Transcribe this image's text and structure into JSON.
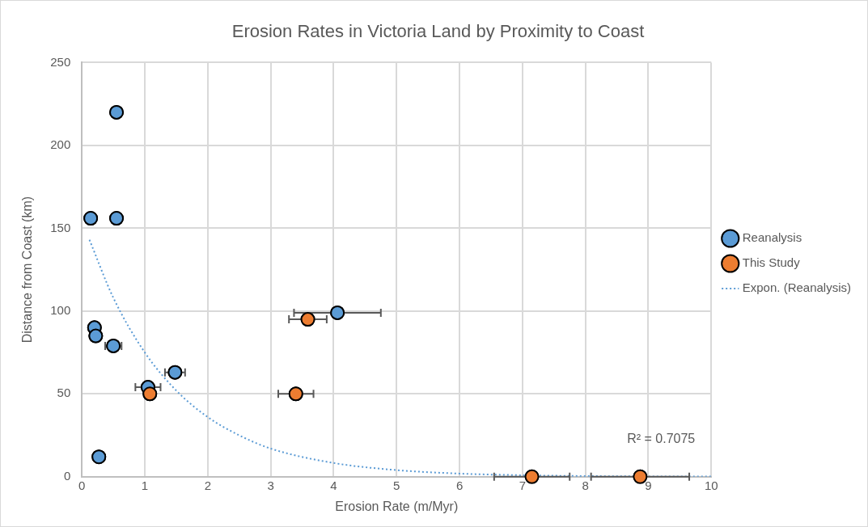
{
  "chart_data": {
    "type": "scatter",
    "title": "Erosion Rates in Victoria Land by Proximity to Coast",
    "xlabel": "Erosion Rate (m/Myr)",
    "ylabel": "Distance from Coast (km)",
    "xlim": [
      0,
      10
    ],
    "xticks": [
      0,
      1,
      2,
      3,
      4,
      5,
      6,
      7,
      8,
      9,
      10
    ],
    "ylim": [
      0,
      250
    ],
    "yticks": [
      0,
      50,
      100,
      150,
      200,
      250
    ],
    "grid": true,
    "legend": "right",
    "marker": "circle",
    "series": [
      {
        "name": "Reanalysis",
        "color": "#5b9bd5",
        "x": [
          0.55,
          0.14,
          0.55,
          0.2,
          0.22,
          0.5,
          1.48,
          1.05,
          0.27,
          4.06
        ],
        "values": [
          220,
          156,
          156,
          90,
          85,
          79,
          63,
          54,
          12,
          99
        ],
        "xerrors": [
          null,
          null,
          null,
          null,
          null,
          0.13,
          0.16,
          0.2,
          null,
          0.69
        ]
      },
      {
        "name": "This Study",
        "color": "#ed7d31",
        "x": [
          1.08,
          3.59,
          3.4,
          7.15,
          8.87
        ],
        "values": [
          50,
          95,
          50,
          0,
          0
        ],
        "xerrors": [
          null,
          0.3,
          0.28,
          0.6,
          0.78
        ]
      },
      {
        "name": "Expon. (Reanalysis)",
        "type": "line",
        "color": "#5b9bd5",
        "marker": "none",
        "line_style": "dotted",
        "x": [
          0.12,
          0.5,
          1,
          1.5,
          2,
          2.5,
          3,
          4,
          5,
          6,
          7,
          8,
          9,
          10
        ],
        "values": [
          143,
          108,
          75,
          52,
          36,
          25,
          17,
          8.3,
          4,
          1.9,
          0.9,
          0.4,
          0.2,
          0.1
        ]
      }
    ],
    "annotations": [
      "R² = 0.7075"
    ]
  }
}
